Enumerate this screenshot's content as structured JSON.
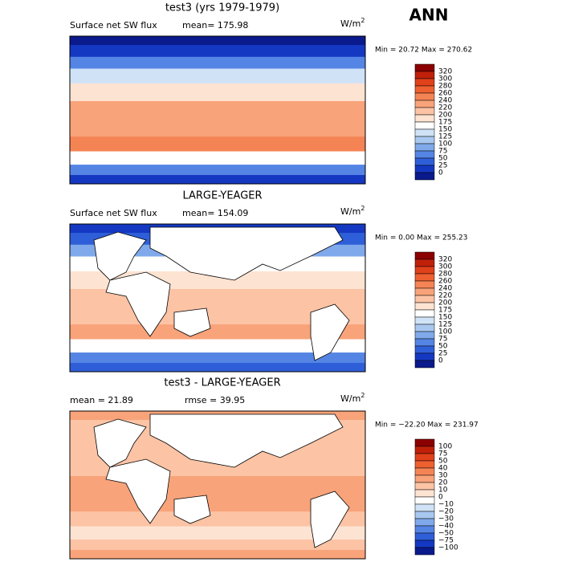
{
  "header": {
    "label": "ANN"
  },
  "panels": [
    {
      "title": "test3 (yrs 1979-1979)",
      "subtitle": "Surface net SW flux",
      "stat1": "mean= 175.98",
      "stat2": null,
      "unit": "W/m",
      "unit_exp": "2",
      "minmax": "Min =  20.72 Max = 270.62",
      "levels": [
        "320",
        "300",
        "280",
        "260",
        "240",
        "220",
        "200",
        "175",
        "150",
        "125",
        "100",
        "75",
        "50",
        "25",
        "0"
      ],
      "colors": [
        "#8b0000",
        "#c0200a",
        "#e0401a",
        "#ee6030",
        "#f58455",
        "#f9a37a",
        "#fcc3a5",
        "#fde3d2",
        "#ffffff",
        "#d0e2f6",
        "#a9c8f0",
        "#7fa9ea",
        "#5585e4",
        "#2f5fd8",
        "#1438c2",
        "#0a1a8c"
      ],
      "bands": [
        15,
        14,
        12,
        9,
        7,
        5,
        5,
        4,
        8,
        12,
        14
      ]
    },
    {
      "title": "LARGE-YEAGER",
      "subtitle": "Surface net SW flux",
      "stat1": "mean= 154.09",
      "stat2": null,
      "unit": "W/m",
      "unit_exp": "2",
      "minmax": "Min =   0.00 Max = 255.23",
      "levels": [
        "320",
        "300",
        "280",
        "260",
        "240",
        "220",
        "200",
        "175",
        "150",
        "125",
        "100",
        "75",
        "50",
        "25",
        "0"
      ],
      "colors": [
        "#8b0000",
        "#c0200a",
        "#e0401a",
        "#ee6030",
        "#f58455",
        "#f9a37a",
        "#fcc3a5",
        "#fde3d2",
        "#ffffff",
        "#d0e2f6",
        "#a9c8f0",
        "#7fa9ea",
        "#5585e4",
        "#2f5fd8",
        "#1438c2",
        "#0a1a8c"
      ],
      "bands": [
        14,
        13,
        11,
        8,
        7,
        6,
        6,
        5,
        8,
        12,
        13
      ]
    },
    {
      "title": "test3 - LARGE-YEAGER",
      "subtitle": null,
      "stat1": "mean =  21.89",
      "stat2": "rmse =  39.95",
      "unit": "W/m",
      "unit_exp": "2",
      "minmax": "Min = −22.20 Max = 231.97",
      "levels": [
        "100",
        "75",
        "50",
        "40",
        "30",
        "20",
        "10",
        "0",
        "−10",
        "−20",
        "−30",
        "−40",
        "−50",
        "−75",
        "−100"
      ],
      "colors": [
        "#8b0000",
        "#c0200a",
        "#e0401a",
        "#ee6030",
        "#f58455",
        "#f9a37a",
        "#fcc3a5",
        "#fde3d2",
        "#ffffff",
        "#d0e2f6",
        "#a9c8f0",
        "#7fa9ea",
        "#5585e4",
        "#2f5fd8",
        "#1438c2",
        "#0a1a8c"
      ],
      "bands": [
        5,
        6,
        6,
        6,
        6,
        5,
        5,
        6,
        7,
        6,
        5
      ]
    }
  ]
}
